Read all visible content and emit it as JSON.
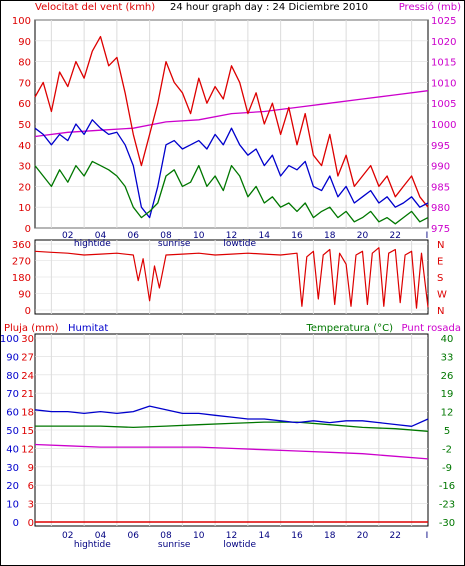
{
  "header": {
    "wind_label": "Velocitat del vent (kmh)",
    "title": "24 hour graph day : 24 Diciembre 2010",
    "pressure_label": "Pressió (mb)"
  },
  "lower_header": {
    "rain_label": "Pluja (mm)",
    "humidity_label": "Humitat",
    "temperature_label": "Temperatura (°C)",
    "dewpoint_label": "Punt rosada"
  },
  "colors": {
    "wind": "#dd0000",
    "gust": "#0000cc",
    "pressure": "#cc00cc",
    "wind_avg": "#007700",
    "direction": "#dd0000",
    "humidity": "#0000cc",
    "temperature": "#007700",
    "dewpoint": "#cc00cc",
    "rain": "#dd0000",
    "grid": "#dcdcdc"
  },
  "chart_data": [
    {
      "id": "wind_pressure",
      "type": "line",
      "title": "24 hour graph day : 24 Diciembre 2010",
      "xlabel": "",
      "ylabel": "Velocitat del vent (kmh)",
      "y2label": "Pressió (mb)",
      "x_ticks": [
        "02",
        "04",
        "06",
        "08",
        "10",
        "12",
        "14",
        "16",
        "18",
        "20",
        "22",
        "I"
      ],
      "x_annotations": [
        "hightide",
        "sunrise",
        "lowtide"
      ],
      "ylim": [
        0,
        100
      ],
      "y_ticks": [
        0,
        10,
        20,
        30,
        40,
        50,
        60,
        70,
        80,
        90,
        100
      ],
      "y2lim": [
        975,
        1025
      ],
      "y2_ticks": [
        975,
        980,
        985,
        990,
        995,
        1000,
        1005,
        1010,
        1015,
        1020,
        1025
      ],
      "grid": true,
      "series": [
        {
          "key": "wind",
          "axis": "y",
          "x": [
            0,
            0.5,
            1,
            1.5,
            2,
            2.5,
            3,
            3.5,
            4,
            4.5,
            5,
            5.5,
            6,
            6.5,
            7,
            7.5,
            8,
            8.5,
            9,
            9.5,
            10,
            10.5,
            11,
            11.5,
            12,
            12.5,
            13,
            13.5,
            14,
            14.5,
            15,
            15.5,
            16,
            16.5,
            17,
            17.5,
            18,
            18.5,
            19,
            19.5,
            20,
            20.5,
            21,
            21.5,
            22,
            22.5,
            23,
            23.5,
            24
          ],
          "values": [
            63,
            70,
            56,
            75,
            68,
            80,
            72,
            85,
            92,
            78,
            82,
            65,
            45,
            30,
            45,
            60,
            80,
            70,
            65,
            55,
            72,
            60,
            68,
            62,
            78,
            70,
            55,
            65,
            50,
            60,
            45,
            58,
            40,
            55,
            35,
            30,
            45,
            25,
            35,
            20,
            25,
            30,
            20,
            25,
            15,
            20,
            25,
            15,
            10
          ]
        },
        {
          "key": "gust",
          "axis": "y",
          "x": [
            0,
            0.5,
            1,
            1.5,
            2,
            2.5,
            3,
            3.5,
            4,
            4.5,
            5,
            5.5,
            6,
            6.5,
            7,
            7.5,
            8,
            8.5,
            9,
            9.5,
            10,
            10.5,
            11,
            11.5,
            12,
            12.5,
            13,
            13.5,
            14,
            14.5,
            15,
            15.5,
            16,
            16.5,
            17,
            17.5,
            18,
            18.5,
            19,
            19.5,
            20,
            20.5,
            21,
            21.5,
            22,
            22.5,
            23,
            23.5,
            24
          ],
          "values": [
            48,
            45,
            40,
            45,
            42,
            50,
            45,
            52,
            48,
            45,
            46,
            40,
            30,
            10,
            5,
            20,
            40,
            42,
            38,
            40,
            42,
            38,
            45,
            40,
            48,
            40,
            35,
            38,
            30,
            35,
            25,
            30,
            28,
            32,
            20,
            18,
            25,
            15,
            20,
            12,
            15,
            18,
            12,
            15,
            10,
            12,
            15,
            10,
            12
          ]
        },
        {
          "key": "wind_avg",
          "axis": "y",
          "x": [
            0,
            0.5,
            1,
            1.5,
            2,
            2.5,
            3,
            3.5,
            4,
            4.5,
            5,
            5.5,
            6,
            6.5,
            7,
            7.5,
            8,
            8.5,
            9,
            9.5,
            10,
            10.5,
            11,
            11.5,
            12,
            12.5,
            13,
            13.5,
            14,
            14.5,
            15,
            15.5,
            16,
            16.5,
            17,
            17.5,
            18,
            18.5,
            19,
            19.5,
            20,
            20.5,
            21,
            21.5,
            22,
            22.5,
            23,
            23.5,
            24
          ],
          "values": [
            30,
            25,
            20,
            28,
            22,
            30,
            25,
            32,
            30,
            28,
            25,
            20,
            10,
            5,
            8,
            12,
            25,
            28,
            20,
            22,
            30,
            20,
            25,
            18,
            30,
            25,
            15,
            20,
            12,
            15,
            10,
            12,
            8,
            12,
            5,
            8,
            10,
            5,
            8,
            3,
            5,
            8,
            3,
            5,
            2,
            5,
            8,
            3,
            5
          ]
        },
        {
          "key": "pressure",
          "axis": "y2",
          "x": [
            0,
            2,
            4,
            6,
            8,
            10,
            12,
            14,
            16,
            18,
            20,
            22,
            24
          ],
          "values": [
            997,
            998,
            998.5,
            999,
            1000.5,
            1001,
            1002.5,
            1003,
            1004,
            1005,
            1006,
            1007,
            1008
          ]
        }
      ]
    },
    {
      "id": "wind_direction",
      "type": "line",
      "xlabel": "",
      "ylabel": "",
      "ylim": [
        0,
        360
      ],
      "y_ticks": [
        0,
        90,
        180,
        270,
        360
      ],
      "y2_ticks": [
        "N",
        "W",
        "S",
        "E",
        "N"
      ],
      "series": [
        {
          "key": "direction",
          "x": [
            0,
            1,
            2,
            3,
            4,
            5,
            6,
            6.3,
            6.6,
            7,
            7.3,
            7.6,
            8,
            9,
            10,
            11,
            12,
            13,
            14,
            15,
            16,
            16.3,
            16.6,
            17,
            17.3,
            17.6,
            18,
            18.3,
            18.6,
            19,
            19.3,
            19.6,
            20,
            20.3,
            20.6,
            21,
            21.3,
            21.6,
            22,
            22.3,
            22.6,
            23,
            23.3,
            23.6,
            24
          ],
          "values": [
            320,
            315,
            310,
            300,
            305,
            310,
            300,
            160,
            280,
            50,
            240,
            120,
            300,
            305,
            310,
            300,
            305,
            310,
            305,
            300,
            310,
            20,
            290,
            320,
            60,
            300,
            330,
            30,
            310,
            250,
            20,
            300,
            320,
            30,
            310,
            340,
            20,
            310,
            330,
            40,
            300,
            320,
            10,
            310,
            15
          ]
        }
      ]
    },
    {
      "id": "temp_humidity",
      "type": "line",
      "xlabel": "",
      "ylabel": "Pluja (mm)",
      "x_ticks": [
        "02",
        "04",
        "06",
        "08",
        "10",
        "12",
        "14",
        "16",
        "18",
        "20",
        "22",
        "I"
      ],
      "x_annotations": [
        "hightide",
        "sunrise",
        "lowtide"
      ],
      "rain_ticks": [
        0,
        3,
        6,
        9,
        12,
        15,
        18,
        21,
        24,
        27,
        30
      ],
      "humidity_ticks": [
        0,
        10,
        20,
        30,
        40,
        50,
        60,
        70,
        80,
        90,
        100
      ],
      "temp_lim": [
        -30,
        40
      ],
      "temp_ticks": [
        -30,
        -23,
        -16,
        -9,
        -2,
        5,
        12,
        19,
        26,
        33,
        40
      ],
      "series": [
        {
          "key": "humidity",
          "axis": "humidity",
          "x": [
            0,
            1,
            2,
            3,
            4,
            5,
            6,
            7,
            8,
            9,
            10,
            11,
            12,
            13,
            14,
            15,
            16,
            17,
            18,
            19,
            20,
            21,
            22,
            23,
            24
          ],
          "values": [
            61,
            60,
            60,
            59,
            60,
            59,
            60,
            63,
            61,
            59,
            59,
            58,
            57,
            56,
            56,
            55,
            54,
            55,
            54,
            55,
            55,
            54,
            53,
            52,
            56
          ]
        },
        {
          "key": "temperature",
          "axis": "temp",
          "x": [
            0,
            2,
            4,
            6,
            8,
            10,
            12,
            14,
            16,
            18,
            20,
            22,
            24
          ],
          "values": [
            6.5,
            6.5,
            6.5,
            6,
            6.5,
            7,
            7.5,
            8,
            8,
            7,
            6,
            5.5,
            4.5
          ]
        },
        {
          "key": "dewpoint",
          "axis": "temp",
          "x": [
            0,
            2,
            4,
            6,
            8,
            10,
            12,
            14,
            16,
            18,
            20,
            22,
            24
          ],
          "values": [
            -0.5,
            -1,
            -1.5,
            -1.5,
            -1.5,
            -1.5,
            -2,
            -2.5,
            -3,
            -3.5,
            -4,
            -5,
            -6
          ]
        },
        {
          "key": "rain",
          "axis": "rain",
          "x": [
            0,
            24
          ],
          "values": [
            0,
            0
          ]
        }
      ]
    }
  ]
}
